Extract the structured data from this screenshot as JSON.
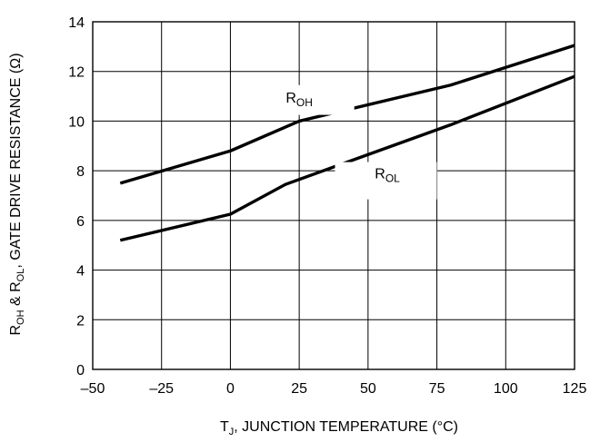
{
  "chart_data": {
    "type": "line",
    "xlabel": {
      "main": "T",
      "sub": "J",
      "rest": ", JUNCTION TEMPERATURE (°C)"
    },
    "ylabel": {
      "r1": "R",
      "r1_sub": "OH",
      "amp": " & R",
      "r2_sub": "OL",
      "rest": ", GATE DRIVE RESISTANCE (Ω)"
    },
    "xlim": [
      -50,
      125
    ],
    "ylim": [
      0,
      14
    ],
    "x_ticks": [
      "–50",
      "–25",
      "0",
      "25",
      "50",
      "75",
      "100",
      "125"
    ],
    "x_tick_values": [
      -50,
      -25,
      0,
      25,
      50,
      75,
      100,
      125
    ],
    "y_ticks": [
      "0",
      "2",
      "4",
      "6",
      "8",
      "10",
      "12",
      "14"
    ],
    "y_tick_values": [
      0,
      2,
      4,
      6,
      8,
      10,
      12,
      14
    ],
    "grid": true,
    "series": [
      {
        "name": "R_OH",
        "label_main": "R",
        "label_sub": "OH",
        "x": [
          -40,
          0,
          25,
          80,
          125
        ],
        "y": [
          7.5,
          8.8,
          10.0,
          11.45,
          13.05
        ]
      },
      {
        "name": "R_OL",
        "label_main": "R",
        "label_sub": "OL",
        "x": [
          -40,
          0,
          20,
          80,
          125
        ],
        "y": [
          5.2,
          6.25,
          7.45,
          9.85,
          11.8
        ]
      }
    ]
  }
}
